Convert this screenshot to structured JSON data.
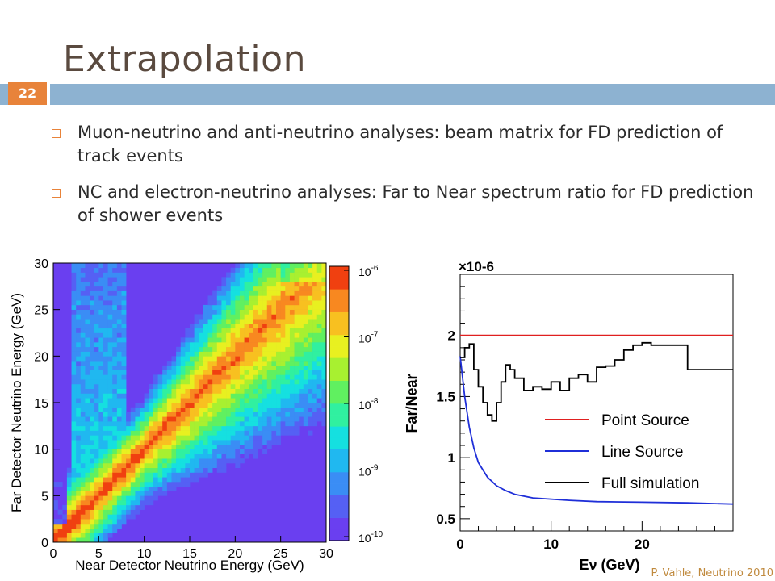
{
  "slide": {
    "title": "Extrapolation",
    "number": "22",
    "bullets": [
      "Muon-neutrino and anti-neutrino analyses: beam matrix for FD prediction of track events",
      "NC and electron-neutrino analyses: Far to Near spectrum ratio for FD prediction of shower events"
    ],
    "footer": "P. Vahle, Neutrino 2010"
  },
  "colors": {
    "accent": "#e8833a",
    "bar": "#8db2d1",
    "title": "#5a4a3f"
  },
  "chart_data": [
    {
      "type": "heatmap",
      "xlabel": "Near Detector Neutrino Energy (GeV)",
      "ylabel": "Far Detector Neutrino Energy (GeV)",
      "xlim": [
        0,
        30
      ],
      "ylim": [
        0,
        30
      ],
      "xticks": [
        "0",
        "5",
        "10",
        "15",
        "20",
        "25",
        "30"
      ],
      "yticks": [
        "0",
        "5",
        "10",
        "15",
        "20",
        "25",
        "30"
      ],
      "colorbar": {
        "scale": "log",
        "range": [
          1e-10,
          1e-06
        ],
        "tick_labels": [
          "10-10",
          "10-9",
          "10-8",
          "10-7",
          "10-6"
        ],
        "tick_values": [
          1e-10,
          1e-09,
          1e-08,
          1e-07,
          1e-06
        ]
      }
    },
    {
      "type": "line",
      "xlabel": "Eν (GeV)",
      "ylabel": "Far/Near",
      "y_multiplier": "×10-6",
      "xlim": [
        0,
        30
      ],
      "ylim": [
        0.4,
        2.5
      ],
      "xticks": [
        "0",
        "10",
        "20"
      ],
      "yticks": [
        "0.5",
        "1",
        "1.5",
        "2"
      ],
      "legend_position": "bottom-right",
      "series": [
        {
          "name": "Point Source",
          "color": "#e02020",
          "x": [
            0,
            30
          ],
          "y": [
            2.0,
            2.0
          ]
        },
        {
          "name": "Line Source",
          "color": "#1f2fd8",
          "x": [
            0,
            0.5,
            1,
            1.5,
            2,
            3,
            4,
            5,
            6,
            8,
            10,
            12,
            15,
            20,
            25,
            30
          ],
          "y": [
            1.83,
            1.5,
            1.25,
            1.08,
            0.96,
            0.84,
            0.77,
            0.73,
            0.7,
            0.67,
            0.66,
            0.65,
            0.64,
            0.635,
            0.63,
            0.62
          ]
        },
        {
          "name": "Full simulation",
          "color": "#000000",
          "x": [
            0,
            0.5,
            1,
            1.5,
            2,
            2.5,
            3,
            3.5,
            4,
            4.5,
            5,
            5.5,
            6,
            7,
            8,
            9,
            10,
            11,
            12,
            13,
            14,
            15,
            16,
            17,
            18,
            19,
            20,
            21,
            22,
            23,
            24,
            25,
            26,
            27,
            28,
            29,
            30
          ],
          "y": [
            1.82,
            1.9,
            1.93,
            1.72,
            1.58,
            1.45,
            1.35,
            1.3,
            1.45,
            1.62,
            1.76,
            1.72,
            1.65,
            1.55,
            1.58,
            1.56,
            1.62,
            1.55,
            1.65,
            1.68,
            1.62,
            1.74,
            1.75,
            1.8,
            1.88,
            1.92,
            1.94,
            1.92,
            1.92,
            1.92,
            1.92,
            1.72,
            1.72,
            1.72,
            1.72,
            1.72,
            1.72
          ]
        }
      ]
    }
  ]
}
